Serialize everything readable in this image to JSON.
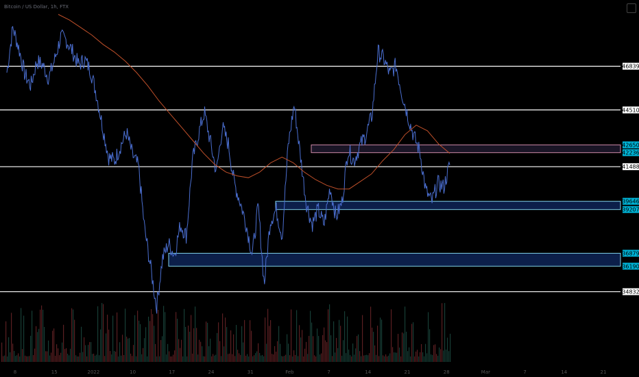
{
  "symbol": "Bitcoin / US Dollar, 1h, FTX",
  "chart_data": {
    "type": "line",
    "price_axis": {
      "min": 30800,
      "max": 50000
    },
    "horizontal_levels": [
      {
        "value": 46839,
        "label": "46839",
        "color": "#ffffff"
      },
      {
        "value": 44510,
        "label": "44510",
        "color": "#ffffff"
      },
      {
        "value": 41488,
        "label": "41488",
        "color": "#ffffff"
      },
      {
        "value": 34832,
        "label": "34832",
        "color": "#ffffff"
      }
    ],
    "zones": [
      {
        "top": 42650,
        "bottom": 42236,
        "labels": [
          "42650",
          "42236"
        ],
        "color": "#d08aa8"
      },
      {
        "top": 39646,
        "bottom": 39207,
        "labels": [
          "39646",
          "39207"
        ],
        "color": "#7fd0e6"
      },
      {
        "top": 36879,
        "bottom": 36190,
        "labels": [
          "36879",
          "36190"
        ],
        "color": "#7fd0e6"
      }
    ],
    "series": [
      {
        "values": [
          46500,
          48900,
          47800,
          46400,
          45800,
          47100,
          46900,
          46200,
          47200,
          48400,
          48200,
          47600,
          46900,
          47200,
          46600,
          45300,
          43600,
          42000,
          41800,
          42600,
          43300,
          42100,
          41500,
          38200,
          36200,
          34000,
          36600,
          37400,
          36800,
          38400,
          37800,
          41800,
          43200,
          44400,
          42800,
          41200,
          43600,
          42700,
          40600,
          39600,
          38400,
          36800,
          39400,
          35200,
          38600,
          39200,
          37800,
          42600,
          44800,
          42200,
          39600,
          38400,
          39200,
          38400,
          40400,
          38800,
          39600,
          42400,
          41800,
          42600,
          43200,
          44200,
          47600,
          47200,
          46400,
          46900,
          45400,
          44200,
          43100,
          42300,
          40200,
          39600,
          40600,
          40400,
          41600
        ]
      },
      {
        "values": [
          49600,
          49300,
          48900,
          48500,
          48000,
          47600,
          47100,
          46500,
          45800,
          45000,
          44300,
          43600,
          42900,
          42200,
          41600,
          41200,
          41000,
          40900,
          41200,
          41700,
          42000,
          41700,
          41200,
          40800,
          40500,
          40300,
          40300,
          40700,
          41100,
          41800,
          42400,
          43200,
          43700,
          43400,
          42700,
          42200
        ]
      }
    ],
    "x_tick_labels": [
      "8",
      "15",
      "2022",
      "10",
      "17",
      "24",
      "31",
      "Feb",
      "7",
      "14",
      "21",
      "28",
      "Mar",
      "7",
      "14",
      "21"
    ]
  }
}
